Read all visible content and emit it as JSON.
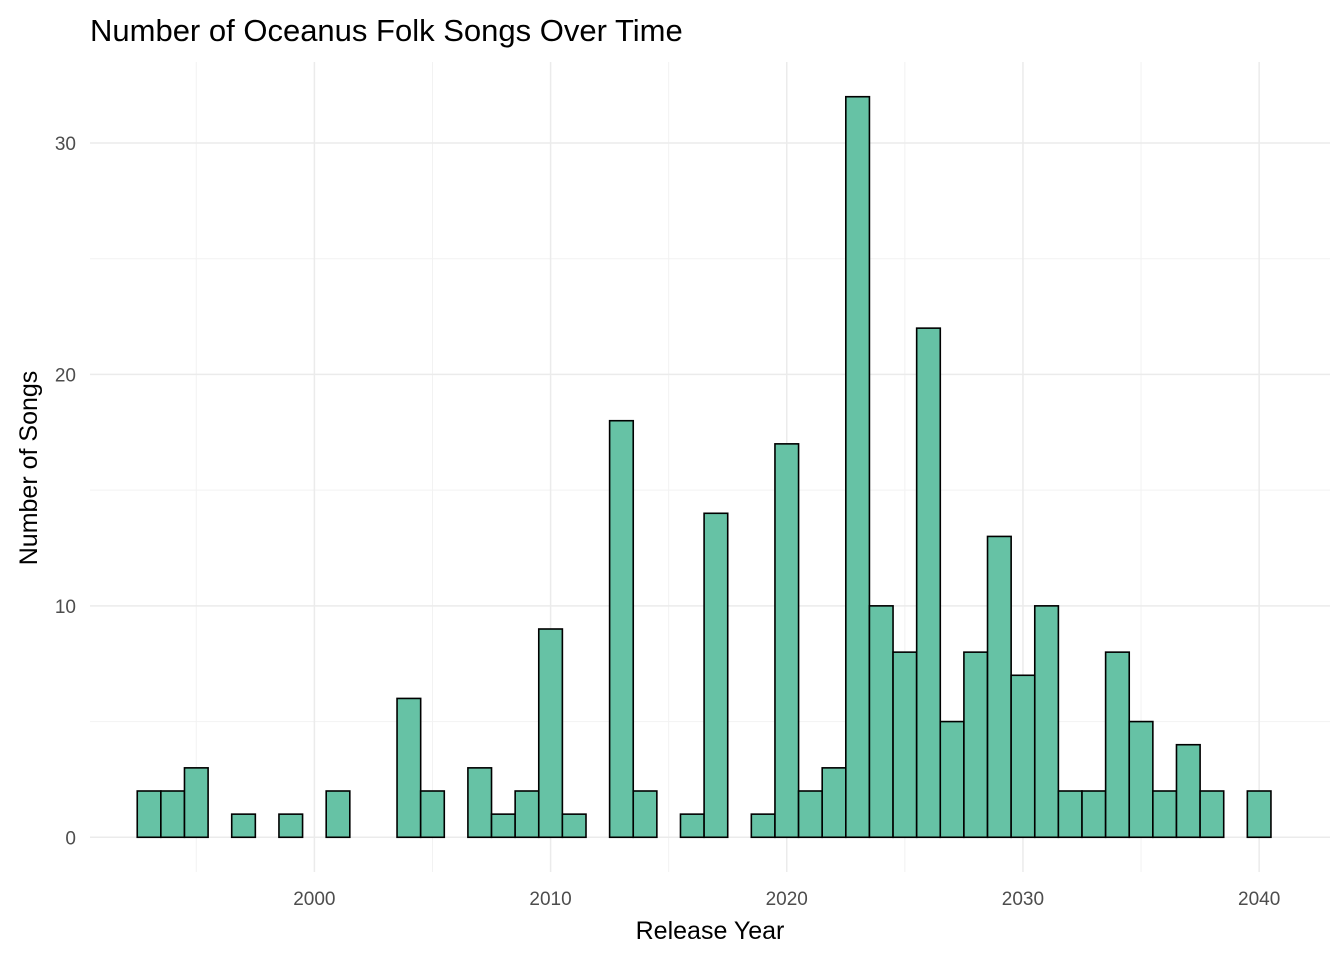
{
  "chart_data": {
    "type": "bar",
    "title": "Number of Oceanus Folk Songs Over Time",
    "xlabel": "Release Year",
    "ylabel": "Number of Songs",
    "x": [
      1993,
      1994,
      1995,
      1996,
      1997,
      1998,
      1999,
      2000,
      2001,
      2002,
      2003,
      2004,
      2005,
      2006,
      2007,
      2008,
      2009,
      2010,
      2011,
      2012,
      2013,
      2014,
      2015,
      2016,
      2017,
      2018,
      2019,
      2020,
      2021,
      2022,
      2023,
      2024,
      2025,
      2026,
      2027,
      2028,
      2029,
      2030,
      2031,
      2032,
      2033,
      2034,
      2035,
      2036,
      2037,
      2038,
      2039,
      2040
    ],
    "values": [
      2,
      2,
      3,
      0,
      1,
      0,
      1,
      0,
      2,
      0,
      0,
      6,
      2,
      0,
      3,
      1,
      2,
      9,
      1,
      0,
      18,
      2,
      0,
      1,
      14,
      0,
      1,
      17,
      2,
      3,
      32,
      10,
      8,
      22,
      5,
      8,
      13,
      7,
      10,
      2,
      2,
      8,
      5,
      2,
      4,
      2,
      0,
      2
    ],
    "xlim": [
      1990.5,
      2043
    ],
    "ylim": [
      -1.5,
      33.5
    ],
    "x_ticks": [
      2000,
      2010,
      2020,
      2030,
      2040
    ],
    "x_tick_labels": [
      "2000",
      "2010",
      "2020",
      "2030",
      "2040"
    ],
    "y_ticks": [
      0,
      10,
      20,
      30
    ],
    "y_tick_labels": [
      "0",
      "10",
      "20",
      "30"
    ],
    "grid": true,
    "legend": "none",
    "colors": {
      "bar_fill": "#66C2A5",
      "bar_stroke": "#000000",
      "grid_major": "#ebebeb",
      "grid_minor": "#f2f2f2",
      "tick_text": "#4d4d4d"
    }
  }
}
